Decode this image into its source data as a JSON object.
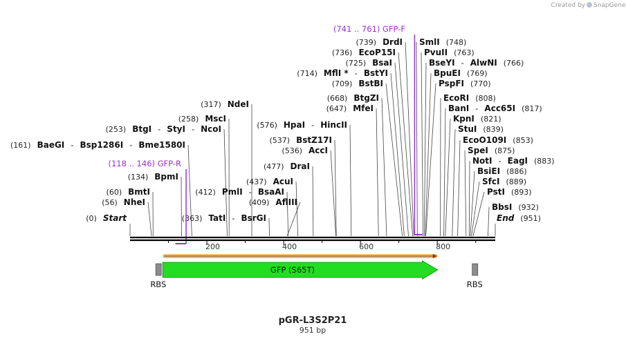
{
  "branding": {
    "created_by": "Created by",
    "app_name": "SnapGene"
  },
  "map": {
    "name": "pGR-L3S2P21",
    "length_label": "951 bp",
    "total_bp": 951,
    "ticks": [
      "200",
      "400",
      "600",
      "800"
    ]
  },
  "enzyme_rows": [
    {
      "side": "L",
      "items": [
        {
          "pos": "(0)",
          "name": "Start",
          "italic": true,
          "bp": 0
        }
      ]
    },
    {
      "side": "L",
      "items": [
        {
          "pos": "(56)",
          "name": "NheI",
          "bp": 56
        }
      ]
    },
    {
      "side": "L",
      "items": [
        {
          "pos": "(60)",
          "name": "BmtI",
          "bp": 60
        }
      ]
    },
    {
      "side": "L",
      "items": [
        {
          "pos": "(134)",
          "name": "BpmI",
          "bp": 134
        }
      ]
    },
    {
      "side": "L",
      "items": [
        {
          "pos": "(161)",
          "name": "BaeGI",
          "bp": 161
        },
        {
          "name": "Bsp1286I",
          "bp": 161
        },
        {
          "name": "Bme1580I",
          "bp": 161
        }
      ]
    },
    {
      "side": "L",
      "items": [
        {
          "pos": "(253)",
          "name": "BtgI",
          "bp": 253
        },
        {
          "name": "StyI",
          "bp": 253
        },
        {
          "name": "NcoI",
          "bp": 253
        }
      ]
    },
    {
      "side": "L",
      "items": [
        {
          "pos": "(258)",
          "name": "MscI",
          "bp": 258
        }
      ]
    },
    {
      "side": "L",
      "items": [
        {
          "pos": "(317)",
          "name": "NdeI",
          "bp": 317
        }
      ]
    },
    {
      "side": "L",
      "items": [
        {
          "pos": "(363)",
          "name": "TatI",
          "bp": 363
        },
        {
          "name": "BsrGI",
          "bp": 363
        }
      ]
    },
    {
      "side": "L",
      "items": [
        {
          "pos": "(409)",
          "name": "AflIII",
          "bp": 409
        }
      ]
    },
    {
      "side": "L",
      "items": [
        {
          "pos": "(412)",
          "name": "PmlI",
          "bp": 412
        },
        {
          "name": "BsaAI",
          "bp": 412
        }
      ]
    },
    {
      "side": "L",
      "items": [
        {
          "pos": "(437)",
          "name": "AcuI",
          "bp": 437
        }
      ]
    },
    {
      "side": "L",
      "items": [
        {
          "pos": "(477)",
          "name": "DraI",
          "bp": 477
        }
      ]
    },
    {
      "side": "L",
      "items": [
        {
          "pos": "(536)",
          "name": "AccI",
          "bp": 536
        }
      ]
    },
    {
      "side": "L",
      "items": [
        {
          "pos": "(537)",
          "name": "BstZ17I",
          "bp": 537
        }
      ]
    },
    {
      "side": "L",
      "items": [
        {
          "pos": "(576)",
          "name": "HpaI",
          "bp": 576
        },
        {
          "name": "HincII",
          "bp": 576
        }
      ]
    },
    {
      "side": "L",
      "items": [
        {
          "pos": "(647)",
          "name": "MfeI",
          "bp": 647
        }
      ]
    },
    {
      "side": "L",
      "items": [
        {
          "pos": "(668)",
          "name": "BtgZI",
          "bp": 668
        }
      ]
    },
    {
      "side": "L",
      "items": [
        {
          "pos": "(709)",
          "name": "BstBI",
          "bp": 709
        }
      ]
    },
    {
      "side": "L",
      "items": [
        {
          "pos": "(714)",
          "name": "MflI *",
          "bp": 714
        },
        {
          "name": "BstYI",
          "bp": 714
        }
      ]
    },
    {
      "side": "L",
      "items": [
        {
          "pos": "(725)",
          "name": "BsaI",
          "bp": 725
        }
      ]
    },
    {
      "side": "L",
      "items": [
        {
          "pos": "(736)",
          "name": "EcoP15I",
          "bp": 736
        }
      ]
    },
    {
      "side": "L",
      "items": [
        {
          "pos": "(739)",
          "name": "DrdI",
          "bp": 739
        }
      ]
    },
    {
      "side": "R",
      "items": [
        {
          "name": "SmlI",
          "pos": "(748)",
          "bp": 748
        }
      ]
    },
    {
      "side": "R",
      "items": [
        {
          "name": "PvuII",
          "pos": "(763)",
          "bp": 763
        }
      ]
    },
    {
      "side": "R",
      "items": [
        {
          "name": "BseYI",
          "bp": 766
        },
        {
          "name": "AlwNI",
          "pos": "(766)",
          "bp": 766
        }
      ]
    },
    {
      "side": "R",
      "items": [
        {
          "name": "BpuEI",
          "pos": "(769)",
          "bp": 769
        }
      ]
    },
    {
      "side": "R",
      "items": [
        {
          "name": "PspFI",
          "pos": "(770)",
          "bp": 770
        }
      ]
    },
    {
      "side": "R",
      "items": [
        {
          "name": "EcoRI",
          "pos": "(808)",
          "bp": 808
        }
      ]
    },
    {
      "side": "R",
      "items": [
        {
          "name": "BanI",
          "bp": 817
        },
        {
          "name": "Acc65I",
          "pos": "(817)",
          "bp": 817
        }
      ]
    },
    {
      "side": "R",
      "items": [
        {
          "name": "KpnI",
          "pos": "(821)",
          "bp": 821
        }
      ]
    },
    {
      "side": "R",
      "items": [
        {
          "name": "StuI",
          "pos": "(839)",
          "bp": 839
        }
      ]
    },
    {
      "side": "R",
      "items": [
        {
          "name": "EcoO109I",
          "pos": "(853)",
          "bp": 853
        }
      ]
    },
    {
      "side": "R",
      "items": [
        {
          "name": "SpeI",
          "pos": "(875)",
          "bp": 875
        }
      ]
    },
    {
      "side": "R",
      "items": [
        {
          "name": "NotI",
          "bp": 883
        },
        {
          "name": "EagI",
          "pos": "(883)",
          "bp": 883
        }
      ]
    },
    {
      "side": "R",
      "items": [
        {
          "name": "BsiEI",
          "pos": "(886)",
          "bp": 886
        }
      ]
    },
    {
      "side": "R",
      "items": [
        {
          "name": "SfcI",
          "pos": "(889)",
          "bp": 889
        }
      ]
    },
    {
      "side": "R",
      "items": [
        {
          "name": "PstI",
          "pos": "(893)",
          "bp": 893
        }
      ]
    },
    {
      "side": "R",
      "items": [
        {
          "name": "BbsI",
          "pos": "(932)",
          "bp": 932
        }
      ]
    },
    {
      "side": "R",
      "items": [
        {
          "name": "End",
          "italic": true,
          "pos": "(951)",
          "bp": 951
        }
      ]
    }
  ],
  "primers": [
    {
      "range": "(118 .. 146)",
      "name": "GFP-R",
      "start": 118,
      "end": 146,
      "strand": "reverse"
    },
    {
      "range": "(741 .. 761)",
      "name": "GFP-F",
      "start": 741,
      "end": 761,
      "strand": "forward"
    }
  ],
  "features": [
    {
      "name": "RBS",
      "type": "rbs",
      "start": 67,
      "end": 80,
      "color": "#8c8c8c"
    },
    {
      "name": "GFP (S65T)",
      "type": "cds",
      "start": 85,
      "end": 801,
      "color": "#22dd22"
    },
    {
      "name": "RBS",
      "type": "rbs",
      "start": 891,
      "end": 904,
      "color": "#8c8c8c"
    }
  ],
  "orf": {
    "start": 85,
    "end": 801,
    "color": "#f2a44e"
  }
}
